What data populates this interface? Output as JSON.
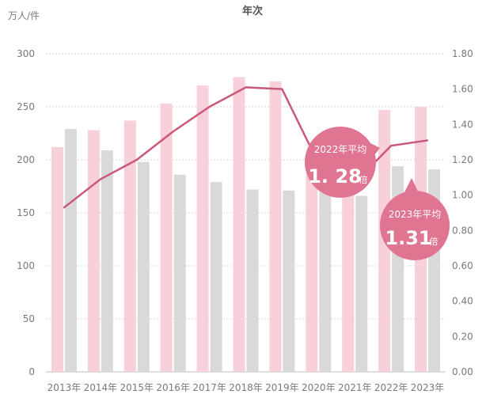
{
  "chart_data": {
    "type": "bar",
    "title": "年次",
    "ylabel": "万人/件",
    "categories": [
      "2013年",
      "2014年",
      "2015年",
      "2016年",
      "2017年",
      "2018年",
      "2019年",
      "2020年",
      "2021年",
      "2022年",
      "2023年"
    ],
    "ylim": [
      0,
      300
    ],
    "yticks": [
      "0",
      "50",
      "100",
      "150",
      "200",
      "250",
      "300"
    ],
    "y2lim": [
      0,
      1.8
    ],
    "y2ticks": [
      "0.00",
      "0.20",
      "0.40",
      "0.60",
      "0.80",
      "1.00",
      "1.20",
      "1.40",
      "1.60",
      "1.80"
    ],
    "grid": true,
    "series": [
      {
        "kind": "bar",
        "color": "#f7d0d9",
        "values": [
          212,
          228,
          237,
          253,
          270,
          278,
          274,
          186,
          168,
          247,
          250
        ]
      },
      {
        "kind": "bar",
        "color": "#d9d9d9",
        "values": [
          229,
          209,
          198,
          186,
          179,
          172,
          171,
          170,
          166,
          194,
          191
        ]
      },
      {
        "kind": "line",
        "axis": "right",
        "color": "#c9587a",
        "values": [
          0.93,
          1.09,
          1.2,
          1.36,
          1.5,
          1.61,
          1.6,
          1.18,
          1.07,
          1.28,
          1.31
        ]
      }
    ],
    "annotations": [
      {
        "title": "2022年平均",
        "value": "1. 28",
        "unit": "倍",
        "color": "#e07592"
      },
      {
        "title": "2023年平均",
        "value": "1.31",
        "unit": "倍",
        "color": "#e07592"
      }
    ]
  }
}
